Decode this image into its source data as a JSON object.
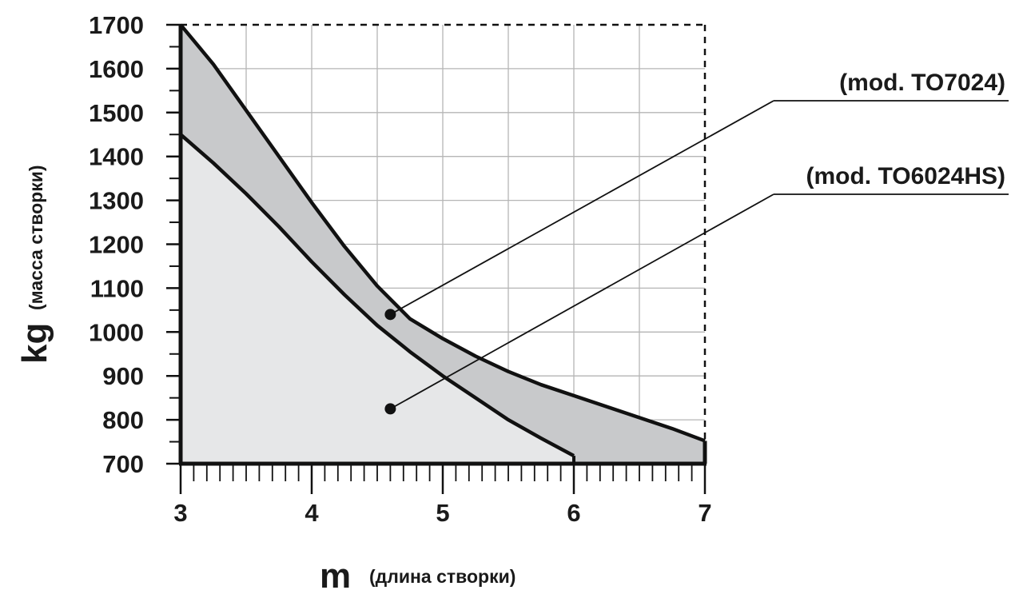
{
  "chart_data": {
    "type": "area",
    "x_unit": "m",
    "x_unit_note": "(длина створки)",
    "y_unit": "kg",
    "y_unit_note": "(масса створки)",
    "xlim": [
      3,
      7
    ],
    "ylim": [
      700,
      1700
    ],
    "x_ticks": [
      "3",
      "4",
      "5",
      "6",
      "7"
    ],
    "y_ticks": [
      "700",
      "800",
      "900",
      "1000",
      "1100",
      "1200",
      "1300",
      "1400",
      "1500",
      "1600",
      "1700"
    ],
    "grid": true,
    "series": [
      {
        "name": "(mod. TO7024)",
        "color": "#c8c9cb",
        "x": [
          3.0,
          3.25,
          3.5,
          3.75,
          4.0,
          4.25,
          4.5,
          4.75,
          5.0,
          5.25,
          5.5,
          5.75,
          6.0,
          6.25,
          6.5,
          6.75,
          7.0
        ],
        "y": [
          1700,
          1610,
          1505,
          1400,
          1295,
          1195,
          1105,
          1030,
          985,
          945,
          910,
          880,
          855,
          830,
          805,
          780,
          752
        ]
      },
      {
        "name": "(mod. TO6024HS)",
        "color": "#e6e7e8",
        "x": [
          3.0,
          3.25,
          3.5,
          3.75,
          4.0,
          4.25,
          4.5,
          4.75,
          5.0,
          5.25,
          5.5,
          5.75,
          6.0
        ],
        "y": [
          1450,
          1385,
          1315,
          1240,
          1160,
          1085,
          1015,
          955,
          900,
          850,
          800,
          758,
          718
        ]
      }
    ]
  }
}
